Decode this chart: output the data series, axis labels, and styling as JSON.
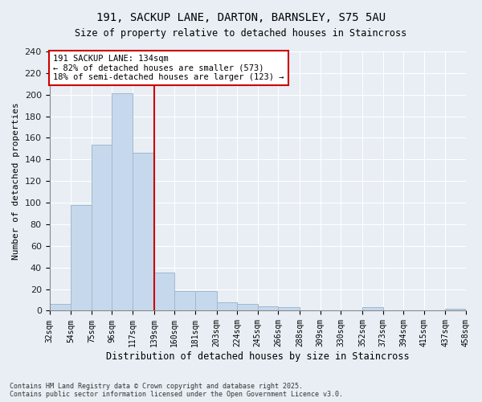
{
  "title": "191, SACKUP LANE, DARTON, BARNSLEY, S75 5AU",
  "subtitle": "Size of property relative to detached houses in Staincross",
  "xlabel": "Distribution of detached houses by size in Staincross",
  "ylabel": "Number of detached properties",
  "footnote1": "Contains HM Land Registry data © Crown copyright and database right 2025.",
  "footnote2": "Contains public sector information licensed under the Open Government Licence v3.0.",
  "annotation_line1": "191 SACKUP LANE: 134sqm",
  "annotation_line2": "← 82% of detached houses are smaller (573)",
  "annotation_line3": "18% of semi-detached houses are larger (123) →",
  "bin_edges": [
    32,
    54,
    75,
    96,
    117,
    139,
    160,
    181,
    203,
    224,
    245,
    266,
    288,
    309,
    330,
    352,
    373,
    394,
    415,
    437,
    458
  ],
  "bin_counts": [
    6,
    98,
    154,
    201,
    146,
    35,
    18,
    18,
    8,
    6,
    4,
    3,
    0,
    0,
    0,
    3,
    0,
    0,
    0,
    2
  ],
  "bar_color": "#c6d9ec",
  "bar_edge_color": "#a0b8d0",
  "vline_color": "#cc0000",
  "vline_x": 139,
  "annotation_box_color": "#cc0000",
  "background_color": "#e8eef4",
  "grid_color": "#ffffff",
  "ylim": [
    0,
    240
  ],
  "yticks": [
    0,
    20,
    40,
    60,
    80,
    100,
    120,
    140,
    160,
    180,
    200,
    220,
    240
  ]
}
